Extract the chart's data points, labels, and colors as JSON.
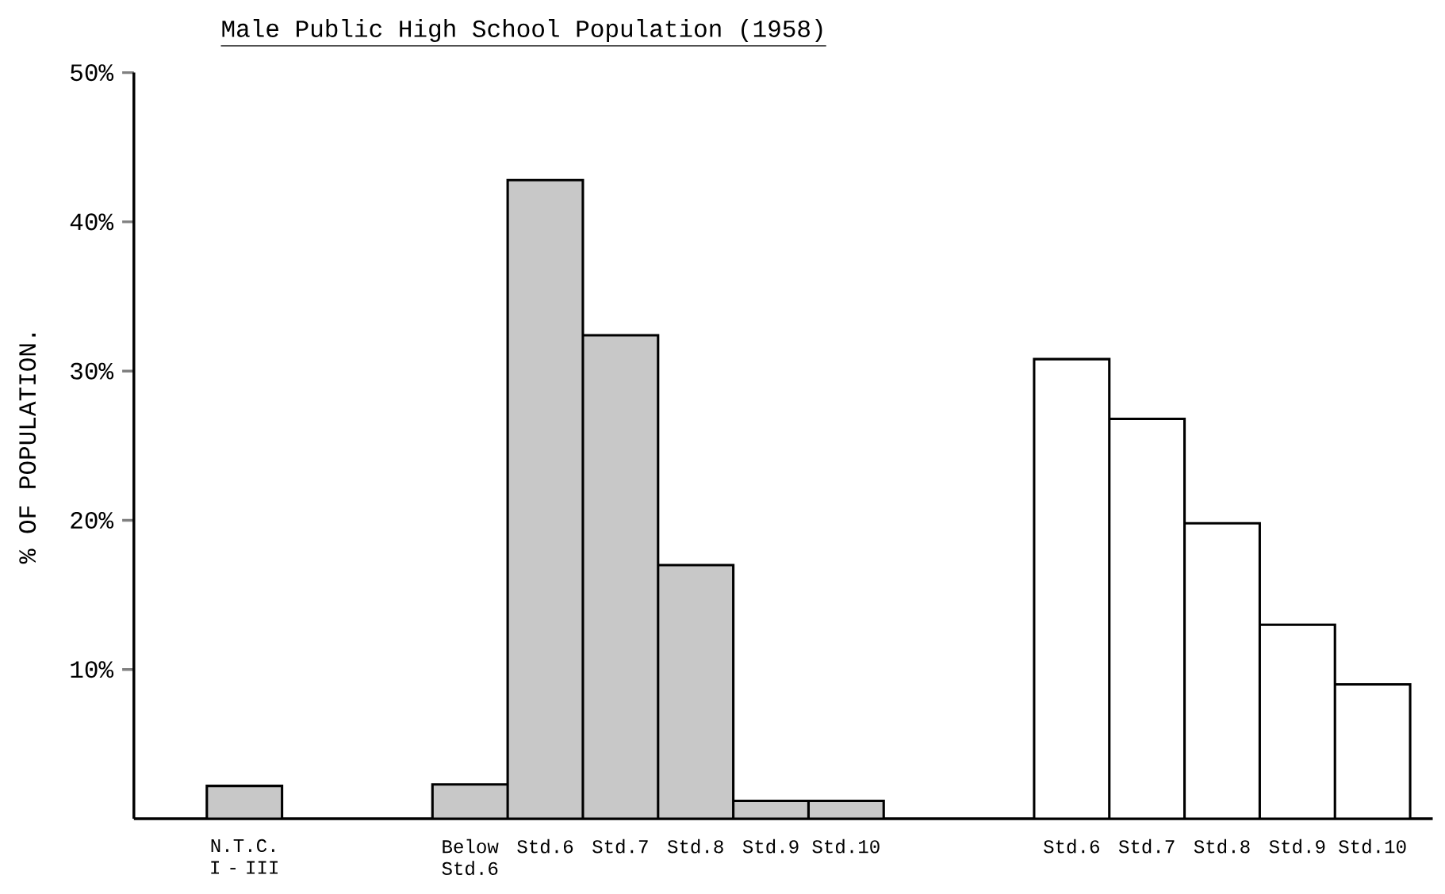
{
  "chart_data": {
    "type": "bar",
    "title": "Male Public High School Population (1958)",
    "ylabel": "% OF POPULATION.",
    "categories": [
      "N.T.C. I - III",
      null,
      null,
      "Below Std.6",
      "Std.6",
      "Std.7",
      "Std.8",
      "Std.9",
      "Std.10",
      null,
      null,
      "Std.6",
      "Std.7",
      "Std.8",
      "Std.9",
      "Std.10"
    ],
    "series": [
      {
        "color": "#c8c8c8",
        "values": [
          2.2,
          null,
          null,
          2.3,
          42.8,
          32.4,
          17.0,
          1.2,
          1.2,
          null,
          null,
          null,
          null,
          null,
          null,
          null
        ]
      },
      {
        "color": "#ffffff",
        "values": [
          null,
          null,
          null,
          null,
          null,
          null,
          null,
          null,
          null,
          null,
          null,
          30.8,
          26.8,
          19.8,
          13.0,
          9.0
        ]
      }
    ],
    "ylim": [
      0,
      50
    ],
    "yticks": [
      {
        "value": 10,
        "label": "10%"
      },
      {
        "value": 20,
        "label": "20%"
      },
      {
        "value": 30,
        "label": "30%"
      },
      {
        "value": 40,
        "label": "40%"
      },
      {
        "value": 50,
        "label": "50%"
      }
    ],
    "grid": false
  }
}
